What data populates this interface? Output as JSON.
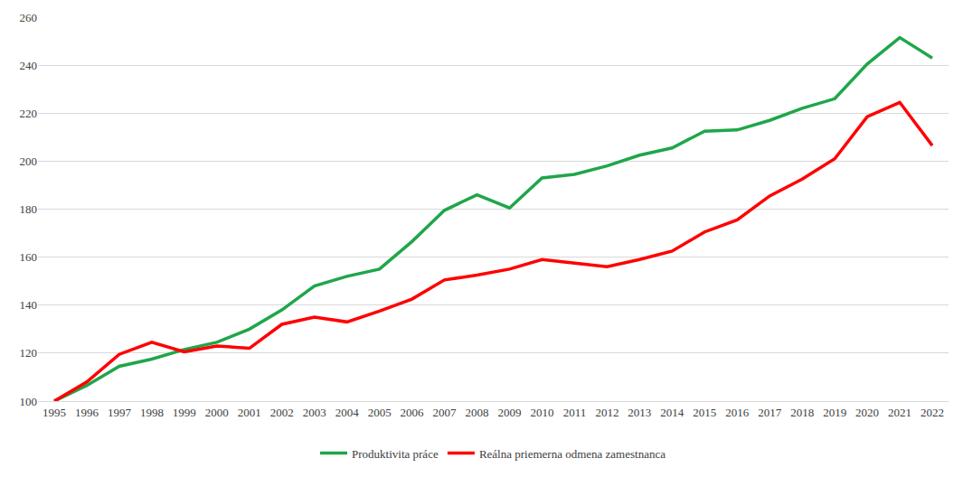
{
  "chart_data": {
    "type": "line",
    "categories": [
      "1995",
      "1996",
      "1997",
      "1998",
      "1999",
      "2000",
      "2001",
      "2002",
      "2003",
      "2004",
      "2005",
      "2006",
      "2007",
      "2008",
      "2009",
      "2010",
      "2011",
      "2012",
      "2013",
      "2014",
      "2015",
      "2016",
      "2017",
      "2018",
      "2019",
      "2020",
      "2021",
      "2022"
    ],
    "series": [
      {
        "name": "Produktivita práce",
        "color": "#1fa64a",
        "values": [
          100,
          106.5,
          114.5,
          117.5,
          121.5,
          124.5,
          130,
          138,
          148,
          152,
          155,
          166.5,
          179.5,
          186,
          180.5,
          193,
          194.5,
          198,
          202.5,
          205.5,
          212.5,
          213,
          217,
          222,
          226,
          240.5,
          251.5,
          243
        ]
      },
      {
        "name": "Reálna priemerna odmena zamestnanca",
        "color": "#ff0000",
        "values": [
          100,
          108,
          119.5,
          124.5,
          120.5,
          123,
          122,
          132,
          135,
          133,
          137.5,
          142.5,
          150.5,
          152.5,
          155,
          159,
          157.5,
          156,
          159,
          162.5,
          170.5,
          175.5,
          185.5,
          192.5,
          201,
          218.5,
          224.5,
          206.5
        ]
      }
    ],
    "ylim": [
      100,
      260
    ],
    "yticks": [
      100,
      120,
      140,
      160,
      180,
      200,
      220,
      240,
      260
    ],
    "grid": true,
    "legend": "bottom"
  }
}
